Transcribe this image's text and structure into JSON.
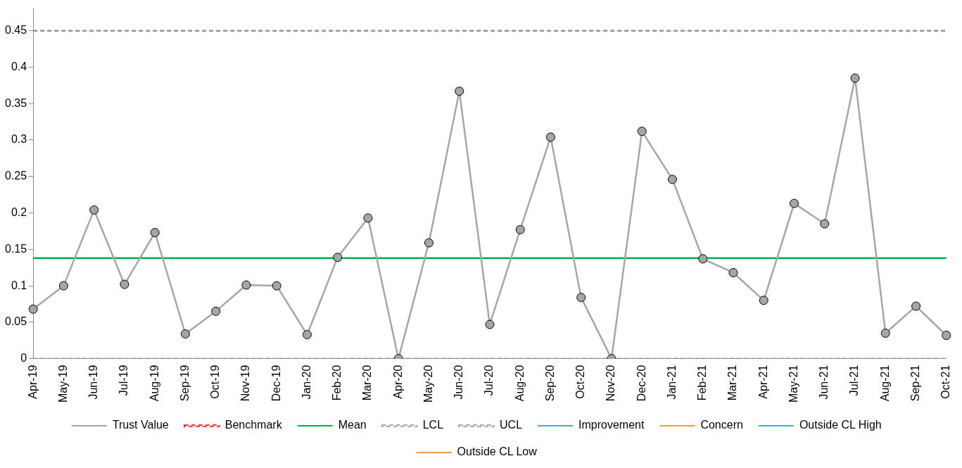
{
  "chart_data": {
    "type": "line",
    "categories": [
      "Apr-19",
      "May-19",
      "Jun-19",
      "Jul-19",
      "Aug-19",
      "Sep-19",
      "Oct-19",
      "Nov-19",
      "Dec-19",
      "Jan-20",
      "Feb-20",
      "Mar-20",
      "Apr-20",
      "May-20",
      "Jun-20",
      "Jul-20",
      "Aug-20",
      "Sep-20",
      "Oct-20",
      "Nov-20",
      "Dec-20",
      "Jan-21",
      "Feb-21",
      "Mar-21",
      "Apr-21",
      "May-21",
      "Jun-21",
      "Jul-21",
      "Aug-21",
      "Sep-21",
      "Oct-21"
    ],
    "series": [
      {
        "name": "Trust Value",
        "color": "#a6a6a6",
        "marker": "circle",
        "line_style": "solid",
        "values": [
          0.068,
          0.1,
          0.204,
          0.102,
          0.173,
          0.034,
          0.065,
          0.101,
          0.1,
          0.033,
          0.139,
          0.193,
          0,
          0.159,
          0.367,
          0.047,
          0.177,
          0.304,
          0.084,
          0,
          0.312,
          0.246,
          0.137,
          0.118,
          0.08,
          0.213,
          0.185,
          0.385,
          0.035,
          0.072,
          0.032
        ]
      },
      {
        "name": "Benchmark",
        "color": "#ff0000",
        "marker": "none",
        "line_style": "dashed",
        "values": [
          null,
          null,
          null,
          null,
          null,
          null,
          null,
          null,
          null,
          null,
          null,
          null,
          null,
          null,
          null,
          null,
          null,
          null,
          null,
          null,
          null,
          null,
          null,
          null,
          null,
          null,
          null,
          null,
          null,
          null,
          null
        ]
      },
      {
        "name": "Mean",
        "color": "#00b050",
        "marker": "none",
        "line_style": "solid",
        "values": [
          0.138,
          0.138,
          0.138,
          0.138,
          0.138,
          0.138,
          0.138,
          0.138,
          0.138,
          0.138,
          0.138,
          0.138,
          0.138,
          0.138,
          0.138,
          0.138,
          0.138,
          0.138,
          0.138,
          0.138,
          0.138,
          0.138,
          0.138,
          0.138,
          0.138,
          0.138,
          0.138,
          0.138,
          0.138,
          0.138,
          0.138
        ]
      },
      {
        "name": "LCL",
        "color": "#8497b0",
        "marker": "none",
        "line_style": "dashed",
        "values": [
          0,
          0,
          0,
          0,
          0,
          0,
          0,
          0,
          0,
          0,
          0,
          0,
          0,
          0,
          0,
          0,
          0,
          0,
          0,
          0,
          0,
          0,
          0,
          0,
          0,
          0,
          0,
          0,
          0,
          0,
          0
        ]
      },
      {
        "name": "UCL",
        "color": "#8497b0",
        "marker": "none",
        "line_style": "dashed",
        "values": [
          0.45,
          0.45,
          0.45,
          0.45,
          0.45,
          0.45,
          0.45,
          0.45,
          0.45,
          0.45,
          0.45,
          0.45,
          0.45,
          0.45,
          0.45,
          0.45,
          0.45,
          0.45,
          0.45,
          0.45,
          0.45,
          0.45,
          0.45,
          0.45,
          0.45,
          0.45,
          0.45,
          0.45,
          0.45,
          0.45,
          0.45
        ]
      },
      {
        "name": "Improvement",
        "color": "#4bacc6",
        "marker": "circle",
        "line_style": "solid",
        "values": [
          null,
          null,
          null,
          null,
          null,
          null,
          null,
          null,
          null,
          null,
          null,
          null,
          null,
          null,
          null,
          null,
          null,
          null,
          null,
          null,
          null,
          null,
          null,
          null,
          null,
          null,
          null,
          null,
          null,
          null,
          null
        ]
      },
      {
        "name": "Concern",
        "color": "#f79646",
        "marker": "circle",
        "line_style": "solid",
        "values": [
          null,
          null,
          null,
          null,
          null,
          null,
          null,
          null,
          null,
          null,
          null,
          null,
          null,
          null,
          null,
          null,
          null,
          null,
          null,
          null,
          null,
          null,
          null,
          null,
          null,
          null,
          null,
          null,
          null,
          null,
          null
        ]
      },
      {
        "name": "Outside CL High",
        "type": "scatter",
        "color": "#4bacc6",
        "marker": "circle",
        "values": [
          null,
          null,
          null,
          null,
          null,
          null,
          null,
          null,
          null,
          null,
          null,
          null,
          null,
          null,
          null,
          null,
          null,
          null,
          null,
          null,
          null,
          null,
          null,
          null,
          null,
          null,
          null,
          null,
          null,
          null,
          null
        ]
      },
      {
        "name": "Outside CL Low",
        "type": "scatter",
        "color": "#f79646",
        "marker": "circle",
        "values": [
          null,
          null,
          null,
          null,
          null,
          null,
          null,
          null,
          null,
          null,
          null,
          null,
          null,
          null,
          null,
          null,
          null,
          null,
          null,
          null,
          null,
          null,
          null,
          null,
          null,
          null,
          null,
          null,
          null,
          null,
          null
        ]
      }
    ],
    "ylim": [
      0,
      0.48
    ],
    "yticks": [
      0,
      0.05,
      0.1,
      0.15,
      0.2,
      0.25,
      0.3,
      0.35,
      0.4,
      0.45
    ],
    "grid": false,
    "legend": "bottom"
  }
}
